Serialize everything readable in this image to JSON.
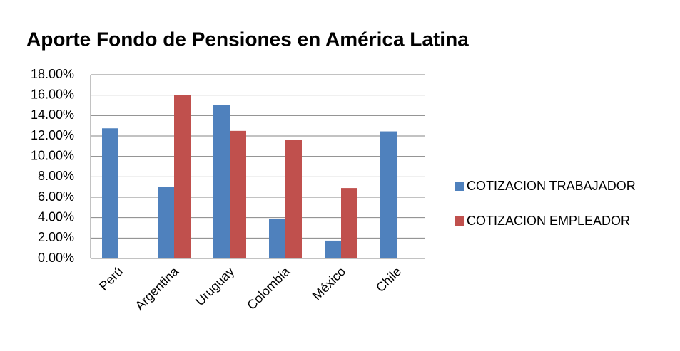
{
  "chart_data": {
    "type": "bar",
    "title": "Aporte Fondo de Pensiones en América Latina",
    "categories": [
      "Perú",
      "Argentina",
      "Uruguay",
      "Colombia",
      "México",
      "Chile"
    ],
    "series": [
      {
        "name": "COTIZACION TRABAJADOR",
        "color": "#4f81bd",
        "values": [
          12.75,
          7,
          15,
          3.9,
          1.75,
          12.45
        ]
      },
      {
        "name": "COTIZACION EMPLEADOR",
        "color": "#c0504d",
        "values": [
          0,
          16,
          12.5,
          11.6,
          6.9,
          0
        ]
      }
    ],
    "ylim": [
      0,
      18
    ],
    "yticks": [
      {
        "value": 0,
        "label": "0.00%"
      },
      {
        "value": 2,
        "label": "2.00%"
      },
      {
        "value": 4,
        "label": "4.00%"
      },
      {
        "value": 6,
        "label": "6.00%"
      },
      {
        "value": 8,
        "label": "8.00%"
      },
      {
        "value": 10,
        "label": "10.00%"
      },
      {
        "value": 12,
        "label": "12.00%"
      },
      {
        "value": 14,
        "label": "14.00%"
      },
      {
        "value": 16,
        "label": "16.00%"
      },
      {
        "value": 18,
        "label": "18.00%"
      }
    ],
    "grid": true,
    "legend": "right"
  }
}
